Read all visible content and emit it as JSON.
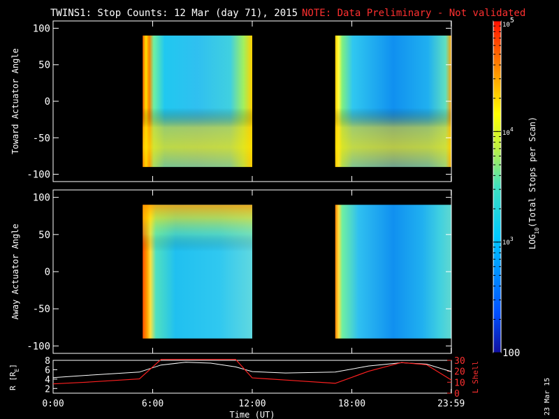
{
  "title": "TWINS1: Stop Counts: 12 Mar (day  71), 2015",
  "note": "NOTE: Data Preliminary - Not validated",
  "stamp": "23 Mar 15",
  "colors": {
    "axis": "#ffffff",
    "note": "#ff3030",
    "background": "#000000",
    "lshell": "#ff2020",
    "radius": "#ffffff"
  },
  "chart_data": [
    {
      "type": "heatmap",
      "ylabel": "Toward Actuator Angle",
      "ylim": [
        -110,
        110
      ],
      "yticks": [
        100,
        50,
        0,
        -50,
        -100
      ],
      "xlim": [
        0,
        24
      ],
      "data_intervals_hours": [
        [
          5.4,
          12.0
        ],
        [
          17.0,
          24.0
        ]
      ],
      "angle_range": [
        -90,
        90
      ]
    },
    {
      "type": "heatmap",
      "ylabel": "Away Actuator Angle",
      "ylim": [
        -110,
        110
      ],
      "yticks": [
        100,
        50,
        0,
        -50,
        -100
      ],
      "xlim": [
        0,
        24
      ],
      "data_intervals_hours": [
        [
          5.4,
          12.0
        ],
        [
          17.0,
          24.0
        ]
      ],
      "angle_range": [
        -90,
        90
      ]
    },
    {
      "type": "line",
      "ylabel_left": "R [R",
      "ylabel_left_sub": "E",
      "ylabel_left_end": "]",
      "ylabel_right": "L Shell",
      "ylim_left": [
        1,
        8
      ],
      "yticks_left": [
        8,
        6,
        4,
        2
      ],
      "ylim_right": [
        0,
        30
      ],
      "yticks_right": [
        30,
        20,
        10,
        0
      ],
      "xlim": [
        0,
        24
      ],
      "xticks": [
        0,
        6,
        12,
        18,
        23.983
      ],
      "xtick_labels": [
        "0:00",
        "6:00",
        "12:00",
        "18:00",
        "23:59"
      ],
      "xlabel": "Time (UT)",
      "series": [
        {
          "axis": "left",
          "x": [
            0,
            2,
            5.2,
            6.5,
            8.0,
            9.5,
            11.0,
            12.0,
            14.0,
            17.0,
            19.0,
            21.0,
            22.5,
            24.0
          ],
          "values": [
            4.3,
            4.8,
            5.5,
            7.0,
            7.6,
            7.4,
            6.6,
            5.6,
            5.3,
            5.5,
            6.8,
            7.5,
            7.2,
            5.6
          ]
        },
        {
          "axis": "right",
          "x": [
            0,
            2,
            5.2,
            6.0,
            6.5,
            11.0,
            12.0,
            14.0,
            17.0,
            19.0,
            21.0,
            22.5,
            24.0
          ],
          "values": [
            8.5,
            10,
            13,
            24,
            31,
            31,
            14,
            12,
            9,
            20,
            28,
            26,
            12
          ]
        }
      ]
    }
  ],
  "colorbar": {
    "label_pre": "LOG",
    "label_sub": "10",
    "label_post": "(Total Stops per Scan)",
    "tick_top_base": "10",
    "tick_top_exp": "5",
    "tick_mid_base": "10",
    "tick_mid_exp": "4",
    "tick_low_base": "10",
    "tick_low_exp": "3",
    "tick_bottom": "100",
    "log_range": [
      2,
      5
    ]
  }
}
